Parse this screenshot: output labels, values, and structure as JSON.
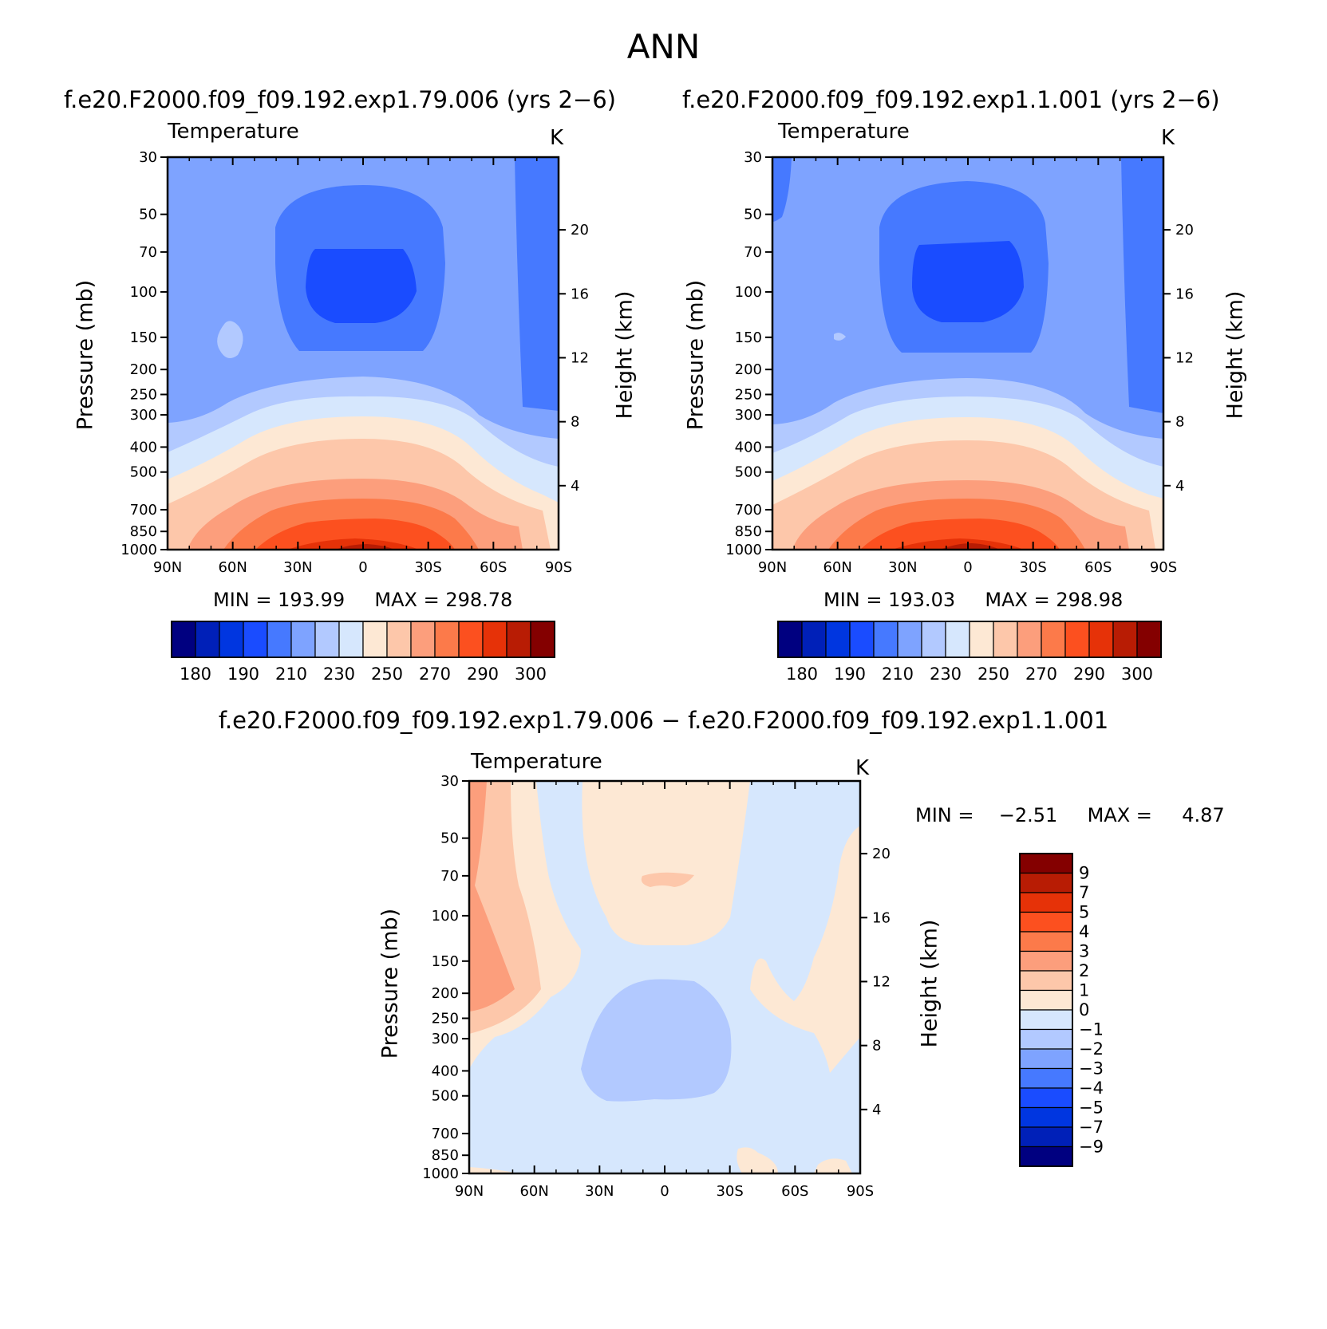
{
  "title": "ANN",
  "panels": [
    {
      "run_title": "f.e20.F2000.f09_f09.192.exp1.79.006 (yrs 2−6)",
      "variable": "Temperature",
      "unit": "K",
      "min_label": "MIN =",
      "min_value": "193.99",
      "max_label": "MAX =",
      "max_value": "298.78"
    },
    {
      "run_title": "f.e20.F2000.f09_f09.192.exp1.1.001 (yrs 2−6)",
      "variable": "Temperature",
      "unit": "K",
      "min_label": "MIN =",
      "min_value": "193.03",
      "max_label": "MAX =",
      "max_value": "298.98"
    },
    {
      "run_title": "f.e20.F2000.f09_f09.192.exp1.79.006 − f.e20.F2000.f09_f09.192.exp1.1.001",
      "variable": "Temperature",
      "unit": "K",
      "min_label": "MIN =",
      "min_value": "−2.51",
      "max_label": "MAX =",
      "max_value": "4.87"
    }
  ],
  "axes": {
    "x_ticks": [
      "90N",
      "60N",
      "30N",
      "0",
      "30S",
      "60S",
      "90S"
    ],
    "pressure_ticks": [
      "30",
      "50",
      "70",
      "100",
      "150",
      "200",
      "250",
      "300",
      "400",
      "500",
      "700",
      "850",
      "1000"
    ],
    "height_ticks": [
      "20",
      "16",
      "12",
      "8",
      "4"
    ],
    "ylabel_left": "Pressure (mb)",
    "ylabel_right": "Height (km)"
  },
  "colorbars": {
    "abs_colors": [
      "#000080",
      "#0020b8",
      "#0036e0",
      "#1a4cff",
      "#4679ff",
      "#7ea3ff",
      "#b2c9ff",
      "#d6e7fd",
      "#fde8d4",
      "#fdc7aa",
      "#fc9e7c",
      "#fc7a4a",
      "#fc501f",
      "#e63208",
      "#b81c04",
      "#840000"
    ],
    "abs_labels": [
      "180",
      "190",
      "210",
      "230",
      "250",
      "270",
      "290",
      "300"
    ],
    "diff_colors_top_to_bottom": [
      "#840000",
      "#b81c04",
      "#e63208",
      "#fc501f",
      "#fc7a4a",
      "#fc9e7c",
      "#fdc7aa",
      "#fde8d4",
      "#d6e7fd",
      "#b2c9ff",
      "#7ea3ff",
      "#4679ff",
      "#1a4cff",
      "#0036e0",
      "#0020b8",
      "#000080"
    ],
    "diff_labels": [
      "9",
      "7",
      "5",
      "4",
      "3",
      "2",
      "1",
      "0",
      "−1",
      "−2",
      "−3",
      "−4",
      "−5",
      "−7",
      "−9"
    ]
  },
  "chart_data": [
    {
      "type": "heatmap",
      "title": "Temperature",
      "subtitle": "f.e20.F2000.f09_f09.192.exp1.79.006 (yrs 2−6)",
      "units": "K",
      "xlabel": "",
      "ylabel": "Pressure (mb)",
      "ylabel_right": "Height (km)",
      "x": [
        "90N",
        "60N",
        "30N",
        "0",
        "30S",
        "60S",
        "90S"
      ],
      "y_pressure_mb": [
        30,
        50,
        70,
        100,
        150,
        200,
        250,
        300,
        400,
        500,
        700,
        850,
        1000
      ],
      "y_height_km": [
        20,
        16,
        12,
        8,
        4
      ],
      "ylim_mb": [
        30,
        1000
      ],
      "yscale": "log",
      "levels": [
        180,
        190,
        200,
        210,
        220,
        230,
        240,
        250,
        260,
        270,
        280,
        290,
        295,
        300
      ],
      "min": 193.99,
      "max": 298.78
    },
    {
      "type": "heatmap",
      "title": "Temperature",
      "subtitle": "f.e20.F2000.f09_f09.192.exp1.1.001 (yrs 2−6)",
      "units": "K",
      "xlabel": "",
      "ylabel": "Pressure (mb)",
      "ylabel_right": "Height (km)",
      "x": [
        "90N",
        "60N",
        "30N",
        "0",
        "30S",
        "60S",
        "90S"
      ],
      "y_pressure_mb": [
        30,
        50,
        70,
        100,
        150,
        200,
        250,
        300,
        400,
        500,
        700,
        850,
        1000
      ],
      "y_height_km": [
        20,
        16,
        12,
        8,
        4
      ],
      "ylim_mb": [
        30,
        1000
      ],
      "yscale": "log",
      "min": 193.03,
      "max": 298.98
    },
    {
      "type": "heatmap",
      "title": "Temperature",
      "subtitle": "f.e20.F2000.f09_f09.192.exp1.79.006 − f.e20.F2000.f09_f09.192.exp1.1.001",
      "units": "K",
      "xlabel": "",
      "ylabel": "Pressure (mb)",
      "ylabel_right": "Height (km)",
      "x": [
        "90N",
        "60N",
        "30N",
        "0",
        "30S",
        "60S",
        "90S"
      ],
      "y_pressure_mb": [
        30,
        50,
        70,
        100,
        150,
        200,
        250,
        300,
        400,
        500,
        700,
        850,
        1000
      ],
      "y_height_km": [
        20,
        16,
        12,
        8,
        4
      ],
      "ylim_mb": [
        30,
        1000
      ],
      "yscale": "log",
      "levels": [
        -9,
        -7,
        -5,
        -4,
        -3,
        -2,
        -1,
        0,
        1,
        2,
        3,
        4,
        5,
        7,
        9
      ],
      "min": -2.51,
      "max": 4.87
    }
  ]
}
